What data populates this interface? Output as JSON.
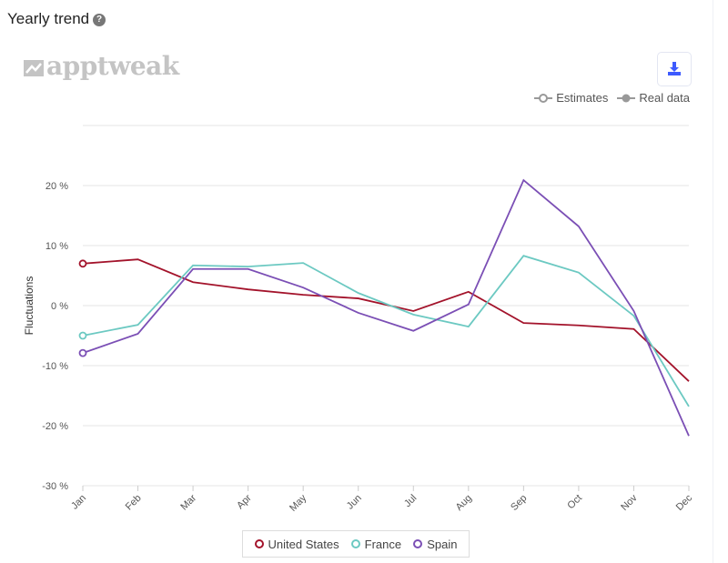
{
  "header": {
    "title": "Yearly trend",
    "help_icon": "?"
  },
  "logo": {
    "text": "apptweak"
  },
  "toolbar": {
    "download_icon": "download-icon"
  },
  "type_legend": {
    "estimates": "Estimates",
    "real": "Real data"
  },
  "chart_data": {
    "type": "line",
    "title": "Yearly trend",
    "xlabel": "",
    "ylabel": "Fluctuations",
    "ylim": [
      -30,
      30
    ],
    "yticks": [
      20,
      10,
      0,
      -10,
      -20,
      -30
    ],
    "ytick_labels": [
      "20 %",
      "10 %",
      "0 %",
      "-10 %",
      "-20 %",
      "-30 %"
    ],
    "categories": [
      "Jan",
      "Feb",
      "Mar",
      "Apr",
      "May",
      "Jun",
      "Jul",
      "Aug",
      "Sep",
      "Oct",
      "Nov",
      "Dec"
    ],
    "legend_position": "bottom",
    "grid": true,
    "series": [
      {
        "name": "United States",
        "color": "#a3132b",
        "values": [
          7.0,
          7.7,
          3.9,
          2.7,
          1.8,
          1.2,
          -0.9,
          2.3,
          -2.9,
          -3.3,
          -3.9,
          -12.6
        ]
      },
      {
        "name": "France",
        "color": "#6cc9c2",
        "values": [
          -5.0,
          -3.2,
          6.7,
          6.5,
          7.1,
          2.1,
          -1.5,
          -3.5,
          8.3,
          5.5,
          -1.7,
          -16.8
        ]
      },
      {
        "name": "Spain",
        "color": "#7b4fb5",
        "values": [
          -7.9,
          -4.7,
          6.1,
          6.1,
          3.0,
          -1.2,
          -4.2,
          0.2,
          20.9,
          13.2,
          -0.9,
          -21.7
        ]
      }
    ]
  }
}
